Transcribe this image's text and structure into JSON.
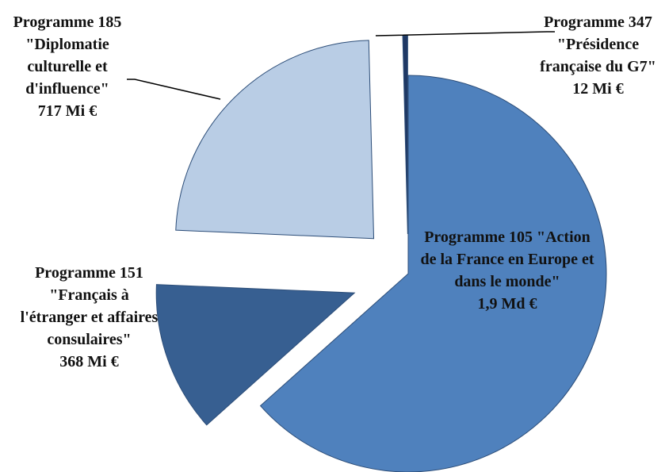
{
  "chart_data": {
    "type": "pie",
    "categories": [
      "Programme 105 \"Action de la France en Europe et dans le monde\"",
      "Programme 151 \"Français à l'étranger et affaires consulaires\"",
      "Programme 185 \"Diplomatie culturelle et d'influence\"",
      "Programme 347 \"Présidence française du G7\""
    ],
    "values": [
      1900,
      368,
      717,
      12
    ],
    "value_labels": [
      "1,9 Md €",
      "368 Mi €",
      "717 Mi €",
      "12 Mi €"
    ],
    "colors": [
      "#4f81bd",
      "#375f91",
      "#b9cde5",
      "#1f3864"
    ]
  }
}
